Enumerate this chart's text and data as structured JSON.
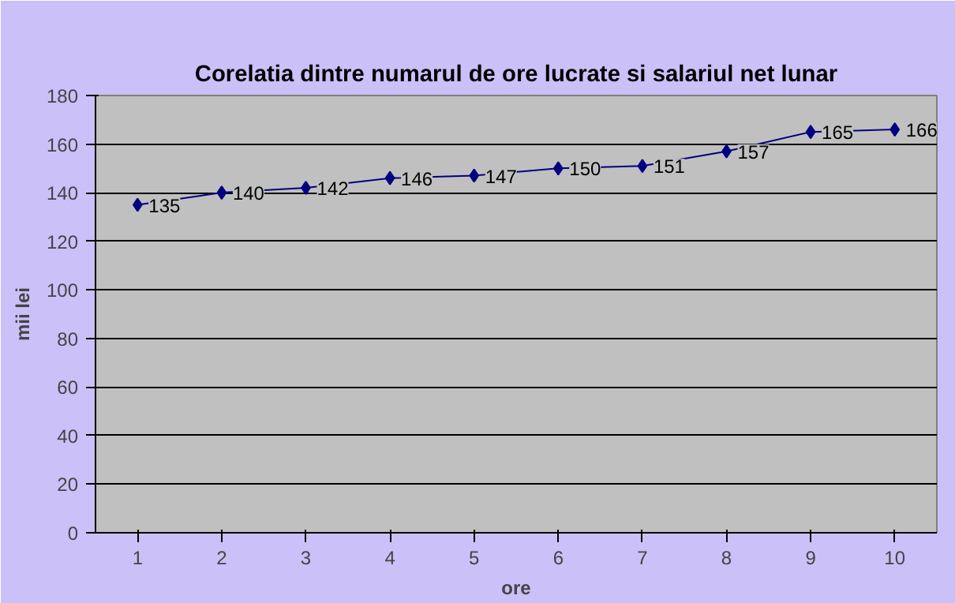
{
  "chart_data": {
    "type": "line",
    "title": "Corelatia dintre numarul de ore lucrate si salariul net lunar",
    "xlabel": "ore",
    "ylabel": "mii lei",
    "categories": [
      "1",
      "2",
      "3",
      "4",
      "5",
      "6",
      "7",
      "8",
      "9",
      "10"
    ],
    "series": [
      {
        "color": "#000080",
        "values": [
          135,
          140,
          142,
          146,
          147,
          150,
          151,
          157,
          165,
          166
        ]
      }
    ],
    "ylim": [
      0,
      180
    ],
    "yticks": [
      0,
      20,
      40,
      60,
      80,
      100,
      120,
      140,
      160,
      180
    ],
    "grid": "y",
    "marker": "diamond",
    "line_style": "solid",
    "data_labels": true
  }
}
